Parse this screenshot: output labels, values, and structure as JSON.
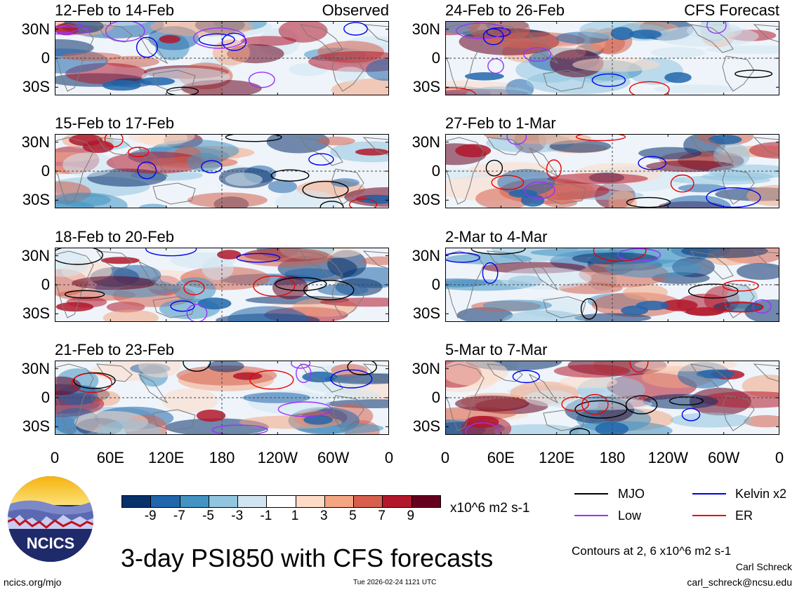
{
  "panels_left": [
    {
      "title": "12-Feb to 14-Feb",
      "tag": "Observed"
    },
    {
      "title": "15-Feb to 17-Feb",
      "tag": ""
    },
    {
      "title": "18-Feb to 20-Feb",
      "tag": ""
    },
    {
      "title": "21-Feb to 23-Feb",
      "tag": ""
    }
  ],
  "panels_right": [
    {
      "title": "24-Feb to 26-Feb",
      "tag": "CFS Forecast"
    },
    {
      "title": "27-Feb to 1-Mar",
      "tag": ""
    },
    {
      "title": "2-Mar to 4-Mar",
      "tag": ""
    },
    {
      "title": "5-Mar to 7-Mar",
      "tag": ""
    }
  ],
  "lat_labels": [
    "30N",
    "0",
    "30S"
  ],
  "lon_labels": [
    "0",
    "60E",
    "120E",
    "180",
    "120W",
    "60W",
    "0"
  ],
  "colorbar": {
    "labels": [
      "-9",
      "-7",
      "-5",
      "-3",
      "-1",
      "1",
      "3",
      "5",
      "7",
      "9"
    ],
    "colors": [
      "#08306b",
      "#2166ac",
      "#4393c3",
      "#92c5de",
      "#d1e5f0",
      "#ffffff",
      "#fddbc7",
      "#f4a582",
      "#d6604d",
      "#b2182b",
      "#67001f"
    ],
    "units": "x10^6 m2 s-1"
  },
  "legend": {
    "mjo": {
      "label": "MJO",
      "color": "#000000"
    },
    "low": {
      "label": "Low",
      "color": "#9b30ff"
    },
    "kelvin": {
      "label": "Kelvin x2",
      "color": "#0000ee"
    },
    "er": {
      "label": "ER",
      "color": "#ee0000"
    }
  },
  "title": "3-day PSI850 with CFS forecasts",
  "contours_note": "Contours at 2, 6 x10^6 m2 s-1",
  "author": "Carl Schreck",
  "email": "carl_schreck@ncsu.edu",
  "website": "ncics.org/mjo",
  "timestamp": "Tue 2026-02-24 1121 UTC",
  "logo_text": "NCICS"
}
